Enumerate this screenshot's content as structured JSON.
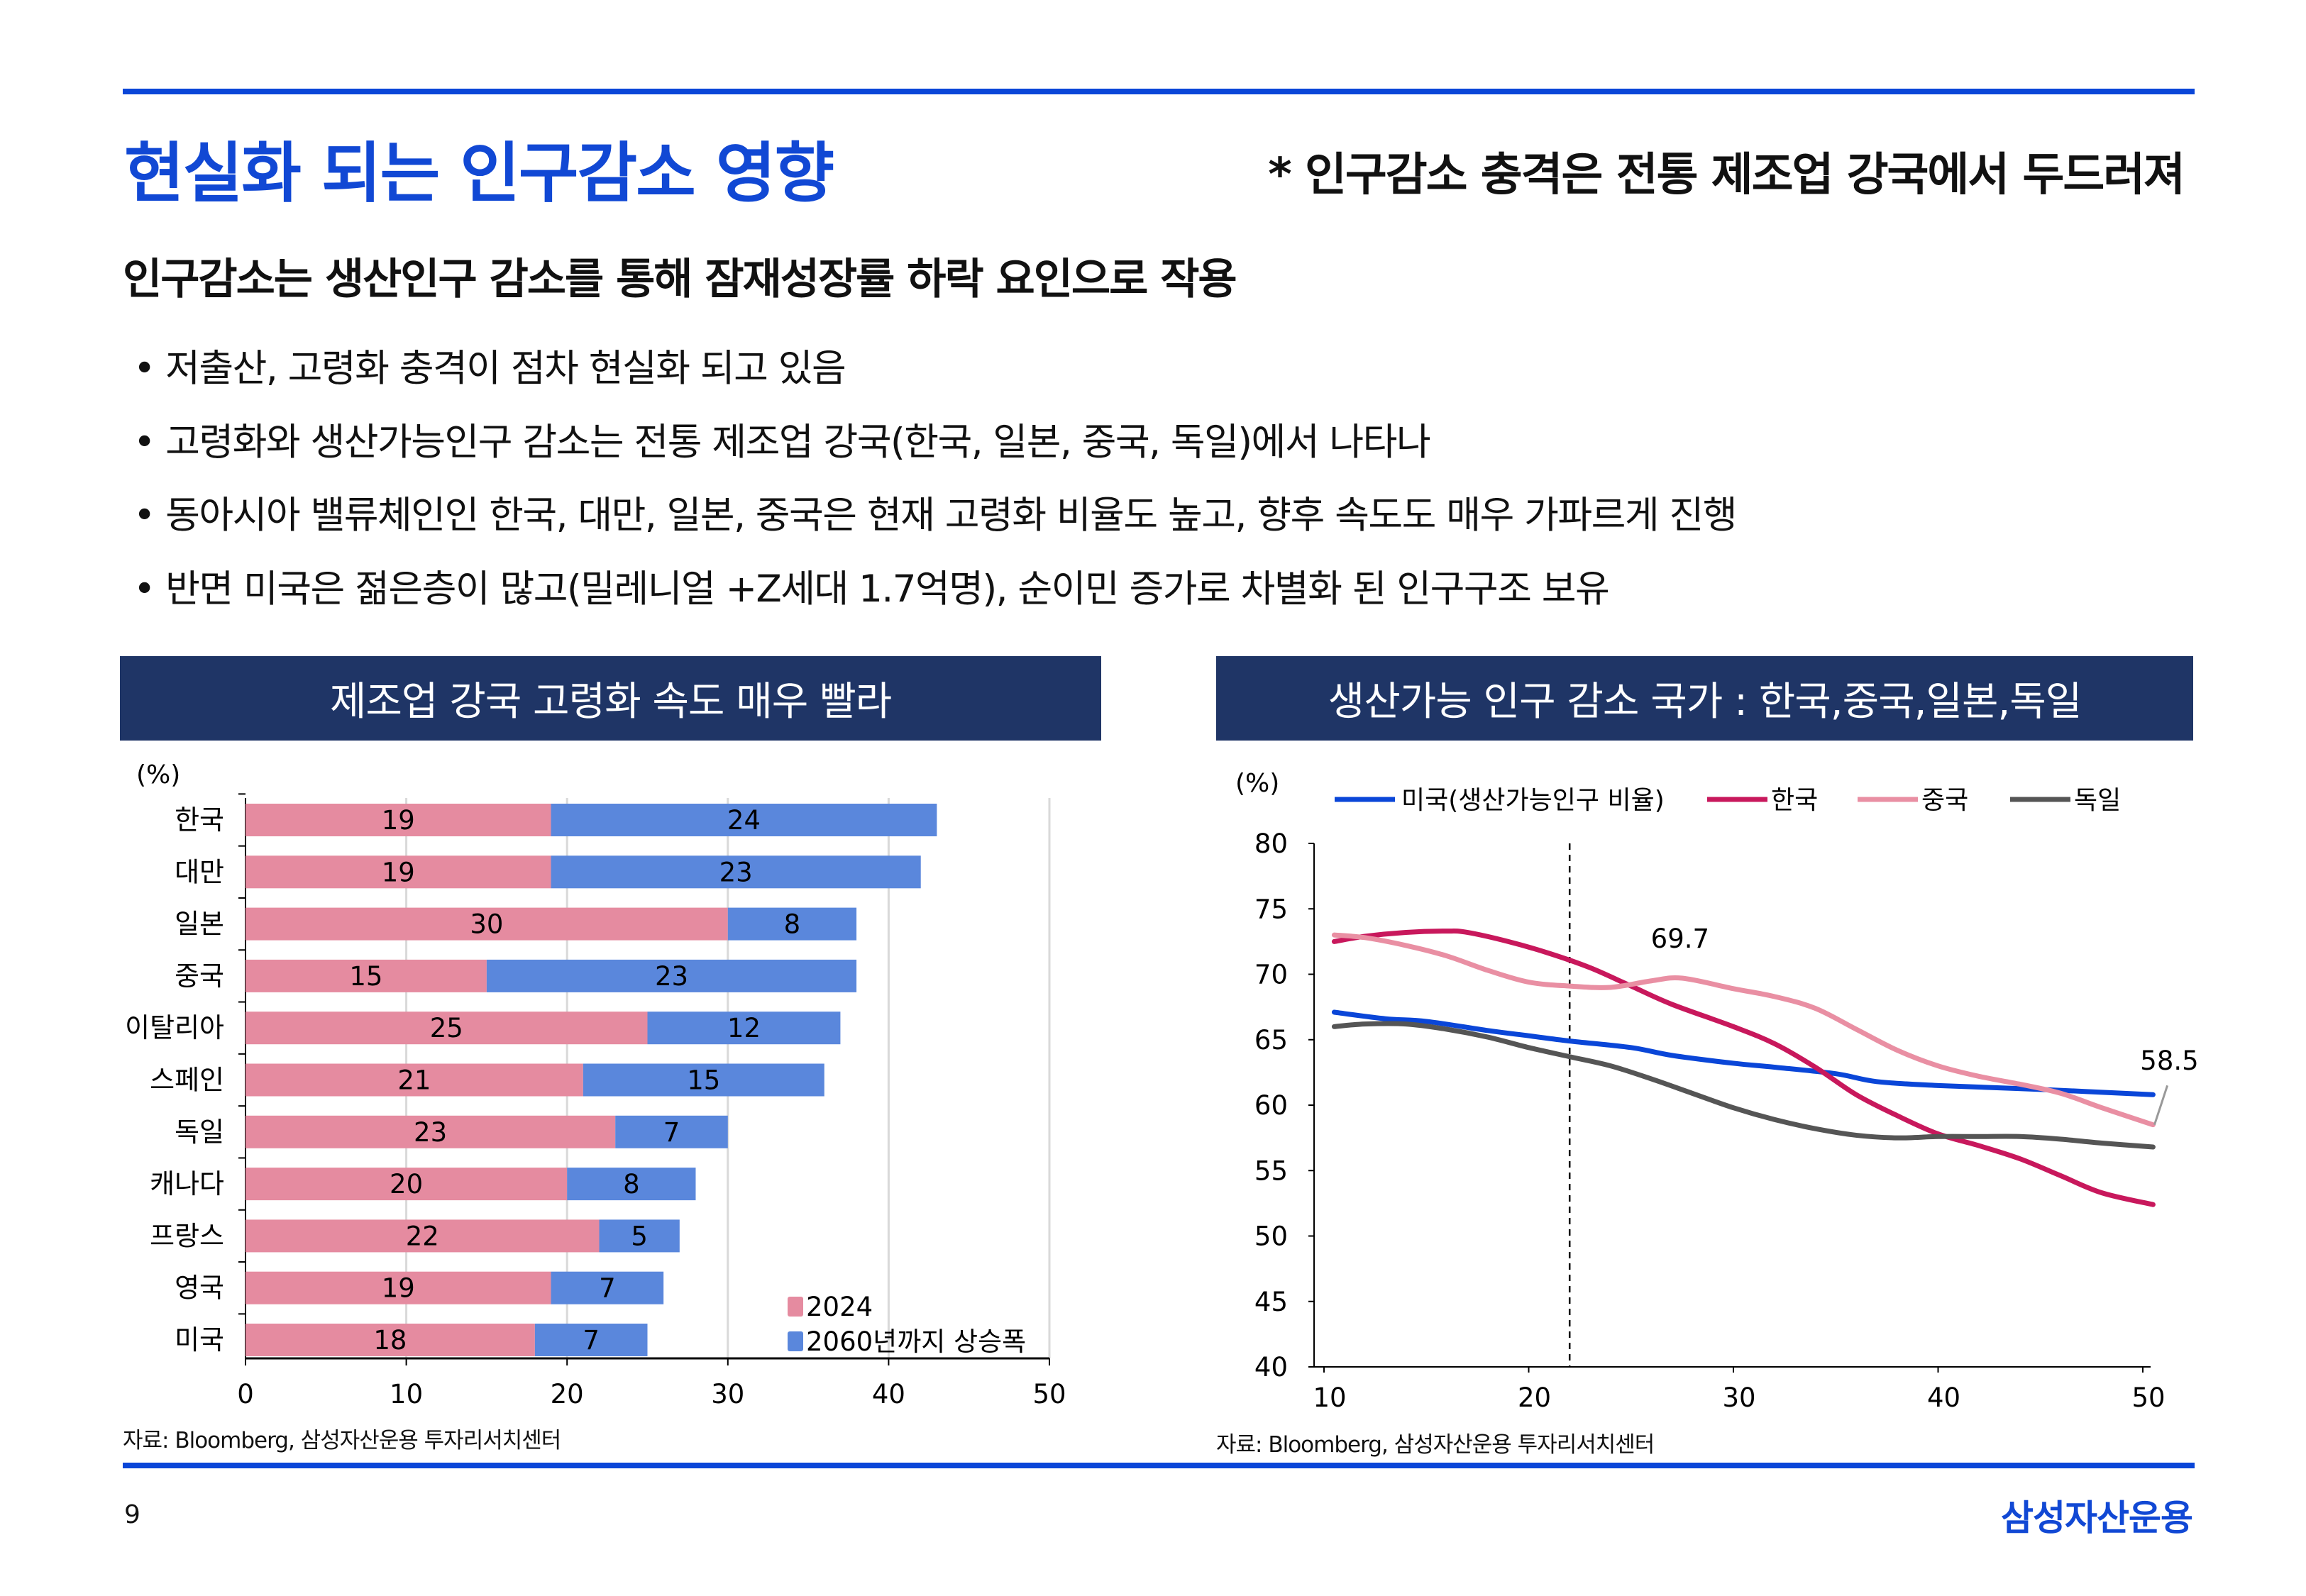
{
  "header": {
    "title": "현실화 되는 인구감소 영향",
    "subtitle": "* 인구감소 충격은 전통 제조업 강국에서 두드러져"
  },
  "main": {
    "heading": "인구감소는 생산인구 감소를 통해 잠재성장률 하락 요인으로 작용",
    "bullets": [
      "• 저출산, 고령화 충격이 점차 현실화 되고 있음",
      "• 고령화와 생산가능인구 감소는 전통 제조업 강국(한국, 일본, 중국, 독일)에서 나타나",
      "• 동아시아 밸류체인인 한국, 대만, 일본, 중국은 현재 고령화 비율도 높고, 향후 속도도 매우 가파르게 진행",
      "• 반면 미국은 젊은층이 많고(밀레니얼 +Z세대 1.7억명), 순이민 증가로 차별화 된 인구구조 보유"
    ]
  },
  "footer": {
    "page": "9",
    "logo": "삼성자산운용"
  },
  "colors": {
    "accent": "#1148d4",
    "header_bg": "#1f3566",
    "bar_2024": "#e58ba0",
    "bar_increase": "#5a87dc"
  },
  "chart_data": [
    {
      "type": "bar",
      "orientation": "horizontal",
      "stacked": true,
      "header": "제조업 강국 고령화 속도 매우 빨라",
      "unit": "(%)",
      "categories": [
        "한국",
        "대만",
        "일본",
        "중국",
        "이탈리아",
        "스페인",
        "독일",
        "캐나다",
        "프랑스",
        "영국",
        "미국"
      ],
      "series": [
        {
          "name": "2024",
          "color": "#e58ba0",
          "values": [
            19,
            19,
            30,
            15,
            25,
            21,
            23,
            20,
            22,
            19,
            18
          ]
        },
        {
          "name": "2060년까지 상승폭",
          "color": "#5a87dc",
          "values": [
            24,
            23,
            8,
            23,
            12,
            15,
            7,
            8,
            5,
            7,
            7
          ]
        }
      ],
      "xlim": [
        0,
        50
      ],
      "xticks": [
        "0",
        "10",
        "20",
        "30",
        "40",
        "50"
      ],
      "grid": true,
      "legend": "bottom-right",
      "source": "자료: Bloomberg, 삼성자산운용 투자리서치센터"
    },
    {
      "type": "line",
      "header": "생산가능 인구 감소 국가 : 한국,중국,일본,독일",
      "unit": "(%)",
      "xlim": [
        10,
        50
      ],
      "ylim": [
        40,
        80
      ],
      "xticks": [
        "10",
        "20",
        "30",
        "40",
        "50"
      ],
      "yticks": [
        "40",
        "45",
        "50",
        "55",
        "60",
        "65",
        "70",
        "75",
        "80"
      ],
      "reference_line_x": 22,
      "legend": "top",
      "series": [
        {
          "name": "미국(생산가능인구 비율)",
          "color": "#0a46d8",
          "points": [
            [
              10.5,
              67.1
            ],
            [
              13,
              66.6
            ],
            [
              15,
              66.4
            ],
            [
              18,
              65.7
            ],
            [
              20,
              65.3
            ],
            [
              22,
              64.9
            ],
            [
              25,
              64.4
            ],
            [
              27,
              63.8
            ],
            [
              30,
              63.2
            ],
            [
              32,
              62.9
            ],
            [
              35,
              62.4
            ],
            [
              37,
              61.8
            ],
            [
              40,
              61.5
            ],
            [
              45,
              61.2
            ],
            [
              50.5,
              60.8
            ]
          ]
        },
        {
          "name": "한국",
          "color": "#c8185c",
          "points": [
            [
              10.5,
              72.5
            ],
            [
              12,
              72.9
            ],
            [
              14,
              73.2
            ],
            [
              16,
              73.3
            ],
            [
              17,
              73.2
            ],
            [
              19,
              72.5
            ],
            [
              21,
              71.6
            ],
            [
              23,
              70.5
            ],
            [
              25,
              69.1
            ],
            [
              27,
              67.7
            ],
            [
              30,
              66.0
            ],
            [
              32,
              64.7
            ],
            [
              34,
              62.9
            ],
            [
              36,
              60.8
            ],
            [
              38,
              59.2
            ],
            [
              40,
              57.8
            ],
            [
              42,
              56.9
            ],
            [
              44,
              55.9
            ],
            [
              46,
              54.6
            ],
            [
              48,
              53.3
            ],
            [
              50.5,
              52.4
            ]
          ]
        },
        {
          "name": "중국",
          "color": "#e98fa3",
          "points": [
            [
              10.5,
              73.0
            ],
            [
              12,
              72.8
            ],
            [
              14,
              72.2
            ],
            [
              16,
              71.4
            ],
            [
              18,
              70.3
            ],
            [
              20,
              69.4
            ],
            [
              22,
              69.1
            ],
            [
              24,
              69.0
            ],
            [
              26,
              69.5
            ],
            [
              27.5,
              69.7
            ],
            [
              30,
              68.9
            ],
            [
              32,
              68.3
            ],
            [
              34,
              67.4
            ],
            [
              36,
              65.8
            ],
            [
              38,
              64.2
            ],
            [
              40,
              63.0
            ],
            [
              42,
              62.2
            ],
            [
              44,
              61.6
            ],
            [
              46,
              60.9
            ],
            [
              48,
              59.8
            ],
            [
              50.5,
              58.5
            ]
          ]
        },
        {
          "name": "독일",
          "color": "#555555",
          "points": [
            [
              10.5,
              66.0
            ],
            [
              12,
              66.2
            ],
            [
              14,
              66.2
            ],
            [
              16,
              65.8
            ],
            [
              18,
              65.2
            ],
            [
              20,
              64.4
            ],
            [
              22,
              63.7
            ],
            [
              24,
              63.0
            ],
            [
              26,
              62.0
            ],
            [
              28,
              60.9
            ],
            [
              30,
              59.8
            ],
            [
              32,
              58.9
            ],
            [
              34,
              58.2
            ],
            [
              36,
              57.7
            ],
            [
              38,
              57.5
            ],
            [
              40,
              57.6
            ],
            [
              42,
              57.6
            ],
            [
              44,
              57.6
            ],
            [
              46,
              57.4
            ],
            [
              48,
              57.1
            ],
            [
              50.5,
              56.8
            ]
          ]
        }
      ],
      "annotations": [
        {
          "text": "69.7",
          "x": 27.5,
          "y": 69.7
        },
        {
          "text": "58.5",
          "x": 50.5,
          "y": 58.5
        }
      ],
      "source": "자료: Bloomberg, 삼성자산운용 투자리서치센터"
    }
  ]
}
